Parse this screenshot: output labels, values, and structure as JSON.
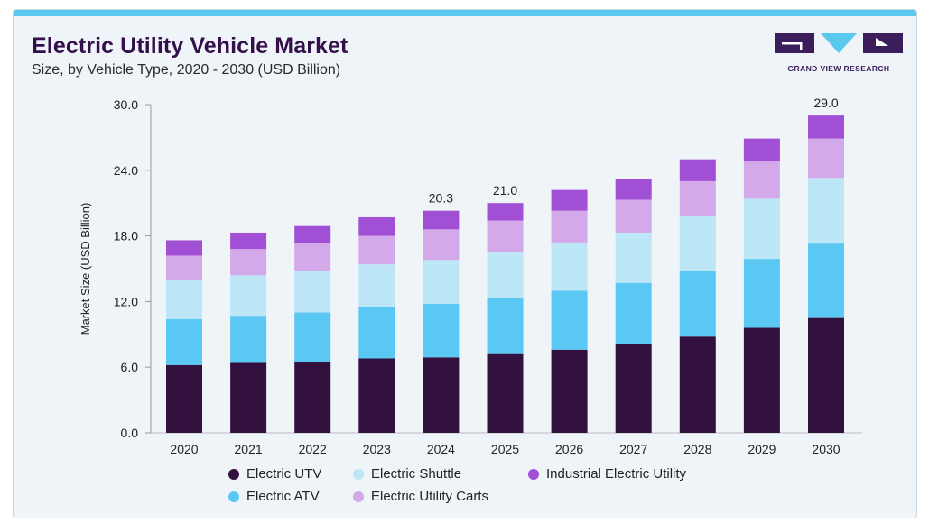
{
  "header": {
    "title": "Electric Utility Vehicle Market",
    "subtitle": "Size, by Vehicle Type, 2020 - 2030 (USD Billion)"
  },
  "brand": {
    "name": "GRAND VIEW RESEARCH",
    "colors": {
      "purple": "#3a1d5a",
      "blue": "#5bc8ee"
    }
  },
  "chart_data": {
    "type": "bar",
    "stacked": true,
    "categories": [
      "2020",
      "2021",
      "2022",
      "2023",
      "2024",
      "2025",
      "2026",
      "2027",
      "2028",
      "2029",
      "2030"
    ],
    "ylabel": "Market Size (USD Billion)",
    "xlabel": "",
    "ylim": [
      0,
      30
    ],
    "yticks": [
      "0.0",
      "6.0",
      "12.0",
      "18.0",
      "24.0",
      "30.0"
    ],
    "grid": false,
    "legend_position": "bottom",
    "series": [
      {
        "name": "Electric UTV",
        "color": "#33113f",
        "values": [
          6.2,
          6.4,
          6.5,
          6.8,
          6.9,
          7.2,
          7.6,
          8.1,
          8.8,
          9.6,
          10.5
        ]
      },
      {
        "name": "Electric ATV",
        "color": "#5bc8f3",
        "values": [
          4.2,
          4.3,
          4.5,
          4.7,
          4.9,
          5.1,
          5.4,
          5.6,
          6.0,
          6.3,
          6.8
        ]
      },
      {
        "name": "Electric Shuttle",
        "color": "#bde6f7",
        "values": [
          3.6,
          3.7,
          3.8,
          3.9,
          4.0,
          4.2,
          4.4,
          4.6,
          5.0,
          5.5,
          6.0
        ]
      },
      {
        "name": "Electric Utility Carts",
        "color": "#d4a9ea",
        "values": [
          2.2,
          2.4,
          2.5,
          2.6,
          2.8,
          2.9,
          2.9,
          3.0,
          3.2,
          3.4,
          3.6
        ]
      },
      {
        "name": "Industrial Electric Utility",
        "color": "#a14fd5",
        "values": [
          1.4,
          1.5,
          1.6,
          1.7,
          1.7,
          1.6,
          1.9,
          1.9,
          2.0,
          2.1,
          2.1
        ]
      }
    ],
    "annotations": [
      {
        "category": "2024",
        "label": "20.3"
      },
      {
        "category": "2025",
        "label": "21.0"
      },
      {
        "category": "2030",
        "label": "29.0"
      }
    ]
  },
  "legend": {
    "row1": [
      "Electric UTV",
      "Electric Shuttle",
      "Industrial Electric Utility"
    ],
    "row2": [
      "Electric ATV",
      "Electric Utility Carts"
    ]
  }
}
